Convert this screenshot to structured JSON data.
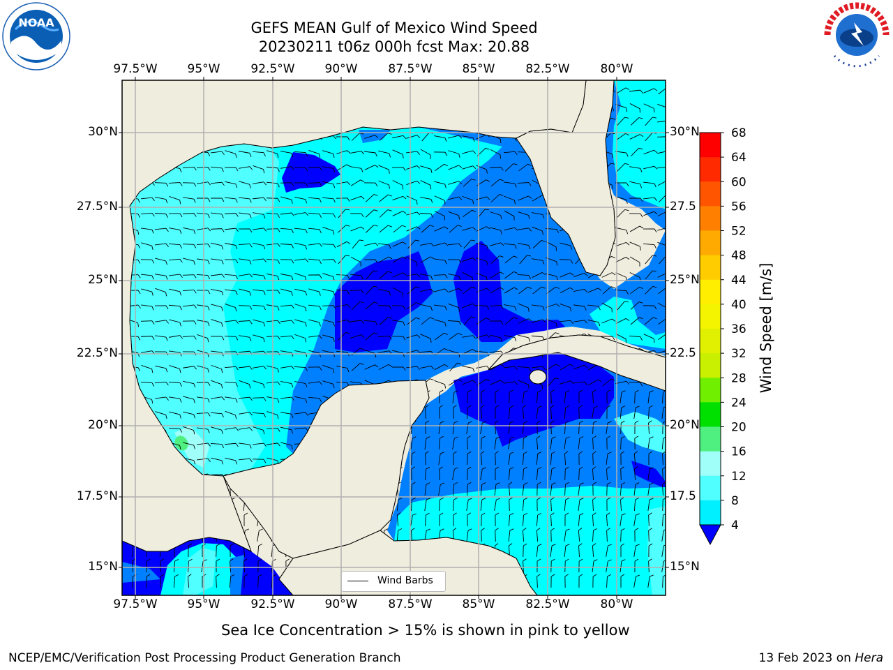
{
  "title": {
    "line1": "GEFS MEAN Gulf of Mexico Wind Speed",
    "line2": "20230211 t06z 000h fcst   Max: 20.88"
  },
  "map": {
    "lon_ticks": [
      "97.5°W",
      "95°W",
      "92.5°W",
      "90°W",
      "87.5°W",
      "85°W",
      "82.5°W",
      "80°W"
    ],
    "lat_ticks_left": [
      "30°N",
      "27.5°N",
      "25°N",
      "22.5°N",
      "20°N",
      "17.5°N",
      "15°N"
    ],
    "lat_ticks_right": [
      "30°N",
      "27.5",
      "25°N",
      "22.5",
      "20°N",
      "17.5",
      "15°N"
    ],
    "land_color": "#efedde",
    "grid_color": "#b0b0b0",
    "legend_label": "Wind Barbs",
    "max_wind": 20.88
  },
  "colorbar": {
    "label": "Wind Speed [m/s]",
    "ticks": [
      "68",
      "64",
      "60",
      "56",
      "52",
      "48",
      "44",
      "40",
      "36",
      "32",
      "28",
      "24",
      "20",
      "16",
      "12",
      "8",
      "4"
    ],
    "colors": [
      "#ff0000",
      "#ff2a00",
      "#ff5500",
      "#ff8000",
      "#ffaa00",
      "#ffcc00",
      "#ffee00",
      "#f4f400",
      "#e0f000",
      "#c8f000",
      "#70f000",
      "#00e000",
      "#50f080",
      "#a0fff8",
      "#50ffff",
      "#00f0ff",
      "#0080ff"
    ],
    "extend_color": "#0000ff"
  },
  "note": "Sea Ice Concentration > 15% is shown in pink to yellow",
  "footer": {
    "left": "NCEP/EMC/Verification Post Processing Product Generation Branch",
    "date": "13 Feb 2023 on ",
    "machine": "Hera"
  },
  "logos": {
    "noaa": "NOAA",
    "nws": "NATIONAL WEATHER SERVICE"
  }
}
